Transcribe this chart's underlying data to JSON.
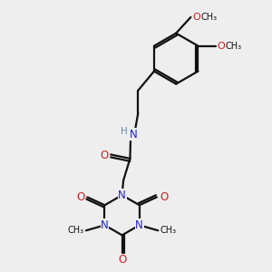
{
  "bg_color": "#eeeeee",
  "bond_color": "#111111",
  "N_color": "#2222cc",
  "O_color": "#cc2020",
  "H_color": "#6688aa",
  "bond_width": 1.6,
  "figsize": [
    3.0,
    3.0
  ],
  "dpi": 100,
  "xlim": [
    0,
    10
  ],
  "ylim": [
    0,
    10
  ]
}
